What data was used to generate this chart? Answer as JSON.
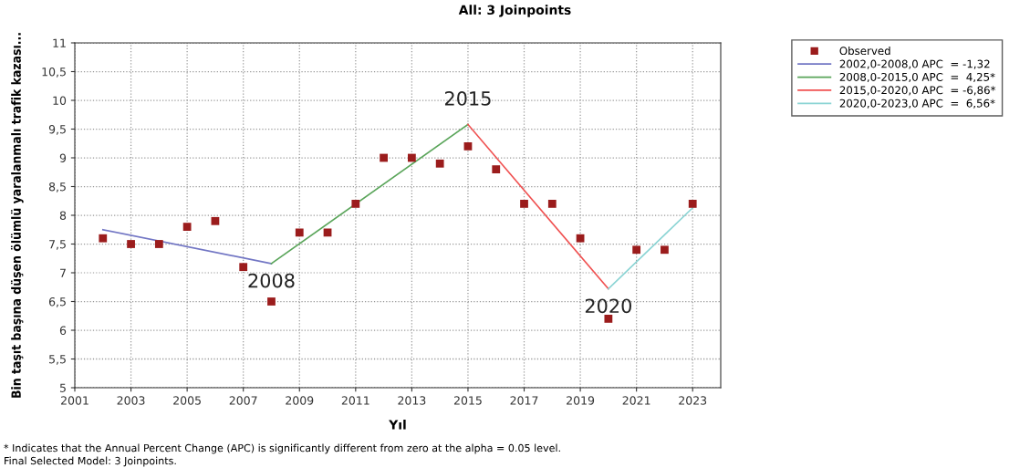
{
  "chart_data": {
    "type": "scatter",
    "title": "All: 3 Joinpoints",
    "xlabel": "Yıl",
    "ylabel": "Bin taşıt başına düşen ölümlü yaralanmalı trafik kazası...",
    "series": [
      {
        "name": "Observed",
        "color": "#9b1c1c",
        "marker": "square",
        "x": [
          2002,
          2003,
          2004,
          2005,
          2006,
          2007,
          2008,
          2009,
          2010,
          2011,
          2012,
          2013,
          2014,
          2015,
          2016,
          2017,
          2018,
          2019,
          2020,
          2021,
          2022,
          2023
        ],
        "values": [
          7.6,
          7.5,
          7.5,
          7.8,
          7.9,
          7.1,
          6.5,
          7.7,
          7.7,
          8.2,
          9.0,
          9.0,
          8.9,
          9.2,
          8.8,
          8.2,
          8.2,
          7.6,
          6.2,
          7.4,
          7.4,
          8.2
        ]
      },
      {
        "name": "2002,0-2008,0 APC  = -1,32",
        "type": "line",
        "color": "#7276c4",
        "x": [
          2002,
          2008
        ],
        "values": [
          7.75,
          7.16
        ]
      },
      {
        "name": "2008,0-2015,0 APC  =  4,25*",
        "type": "line",
        "color": "#5aa55a",
        "x": [
          2008,
          2015
        ],
        "values": [
          7.16,
          9.58
        ]
      },
      {
        "name": "2015,0-2020,0 APC  = -6,86*",
        "type": "line",
        "color": "#f05050",
        "x": [
          2015,
          2020
        ],
        "values": [
          9.58,
          6.72
        ]
      },
      {
        "name": "2020,0-2023,0 APC  =  6,56*",
        "type": "line",
        "color": "#8ad4d4",
        "x": [
          2020,
          2023
        ],
        "values": [
          6.72,
          8.13
        ]
      }
    ],
    "xlim": [
      2001,
      2024
    ],
    "xticks": [
      2001,
      2003,
      2005,
      2007,
      2009,
      2011,
      2013,
      2015,
      2017,
      2019,
      2021,
      2023
    ],
    "ylim": [
      5,
      11
    ],
    "yticks": [
      5,
      {
        "value": 5.5,
        "label": "5,5"
      },
      6,
      {
        "value": 6.5,
        "label": "6,5"
      },
      7,
      {
        "value": 7.5,
        "label": "7,5"
      },
      8,
      {
        "value": 8.5,
        "label": "8,5"
      },
      9,
      {
        "value": 9.5,
        "label": "9,5"
      },
      10,
      {
        "value": 10.5,
        "label": "10,5"
      },
      11
    ],
    "grid": true,
    "legend": "top right",
    "line_style": "solid",
    "annotations": [
      {
        "text": "2008",
        "x": 2008,
        "y": 7.16
      },
      {
        "text": "2015",
        "x": 2015,
        "y": 9.58
      },
      {
        "text": "2020",
        "x": 2020,
        "y": 6.72
      },
      "* Indicates that the Annual Percent Change (APC) is significantly different from zero at the alpha = 0.05 level.",
      "Final Selected Model: 3 Joinpoints."
    ]
  }
}
